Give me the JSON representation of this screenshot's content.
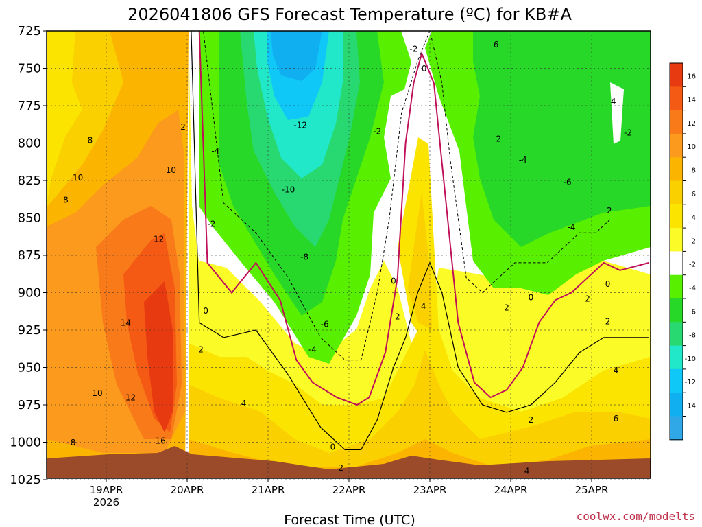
{
  "chart_data": {
    "type": "heatmap",
    "title": "2026041806 GFS Forecast Temperature (ºC) for KB#A",
    "xlabel": "Forecast Time (UTC)",
    "ylabel": "Pressure (hPa)",
    "credit": "coolwx.com/modelts",
    "ylim": [
      1025,
      725
    ],
    "xlim": [
      0.0,
      7.46
    ],
    "y_ticks": [
      "725",
      "750",
      "775",
      "800",
      "825",
      "850",
      "875",
      "900",
      "925",
      "950",
      "975",
      "1000",
      "1025"
    ],
    "x_ticks": [
      {
        "label": "19APR",
        "sub": "2026",
        "day": 0.75
      },
      {
        "label": "20APR",
        "sub": "",
        "day": 1.75
      },
      {
        "label": "21APR",
        "sub": "",
        "day": 2.75
      },
      {
        "label": "22APR",
        "sub": "",
        "day": 3.75
      },
      {
        "label": "23APR",
        "sub": "",
        "day": 4.75
      },
      {
        "label": "24APR",
        "sub": "",
        "day": 5.75
      },
      {
        "label": "25APR",
        "sub": "",
        "day": 6.75
      }
    ],
    "colorbar": {
      "levels": [
        "16",
        "14",
        "12",
        "10",
        "8",
        "6",
        "4",
        "2",
        "-2",
        "-4",
        "-6",
        "-8",
        "-10",
        "-12",
        "-14"
      ],
      "colors": [
        "#e83a10",
        "#f45a14",
        "#f97a18",
        "#fb9a1c",
        "#fbb400",
        "#fbd000",
        "#fbe400",
        "#fbfb28",
        "#ffffff",
        "#58f000",
        "#28d828",
        "#28d870",
        "#20e8c8",
        "#10c8f8",
        "#10b0f0",
        "#30a8e8"
      ]
    },
    "series": [
      {
        "name": "freezing line (0°C)",
        "day": [
          1.9,
          2.0,
          2.3,
          2.6,
          2.9,
          3.1,
          3.3,
          3.6,
          3.85,
          4.0,
          4.2,
          4.35,
          4.45,
          4.55,
          4.65,
          4.8,
          4.95,
          5.1,
          5.3,
          5.5,
          5.7,
          5.9,
          6.1,
          6.3,
          6.5,
          6.7,
          6.9,
          7.1,
          7.46
        ],
        "p": [
          725,
          880,
          900,
          880,
          905,
          945,
          960,
          970,
          975,
          970,
          940,
          890,
          800,
          760,
          740,
          760,
          840,
          920,
          960,
          970,
          965,
          950,
          920,
          905,
          900,
          890,
          880,
          885,
          880
        ]
      },
      {
        "name": "-2°C isotherm",
        "day": [
          1.95,
          2.2,
          2.6,
          3.0,
          3.4,
          3.7,
          3.9,
          4.1,
          4.25,
          4.4,
          4.6,
          4.75,
          4.9,
          5.0,
          5.2,
          5.4,
          5.6,
          5.8,
          6.0,
          6.2,
          6.4,
          6.6,
          6.8,
          7.0,
          7.46
        ],
        "p": [
          725,
          840,
          860,
          890,
          930,
          945,
          945,
          900,
          850,
          780,
          745,
          725,
          760,
          810,
          890,
          900,
          890,
          880,
          880,
          880,
          870,
          860,
          860,
          850,
          850
        ]
      },
      {
        "name": "2°C isotherm",
        "day": [
          1.8,
          1.9,
          2.2,
          2.6,
          3.0,
          3.4,
          3.7,
          3.9,
          4.1,
          4.3,
          4.45,
          4.6,
          4.75,
          4.9,
          5.1,
          5.4,
          5.7,
          6.0,
          6.3,
          6.6,
          6.9,
          7.2,
          7.46
        ],
        "p": [
          725,
          920,
          930,
          925,
          955,
          990,
          1005,
          1005,
          985,
          950,
          930,
          900,
          880,
          900,
          950,
          975,
          980,
          975,
          960,
          940,
          930,
          930,
          930
        ]
      }
    ],
    "contour_labels": [
      {
        "text": "8",
        "day": 0.55,
        "p": 800
      },
      {
        "text": "8",
        "day": 0.25,
        "p": 840
      },
      {
        "text": "10",
        "day": 0.4,
        "p": 825
      },
      {
        "text": "10",
        "day": 1.55,
        "p": 820
      },
      {
        "text": "12",
        "day": 1.4,
        "p": 866
      },
      {
        "text": "14",
        "day": 0.99,
        "p": 922
      },
      {
        "text": "10",
        "day": 0.64,
        "p": 969
      },
      {
        "text": "12",
        "day": 1.05,
        "p": 972
      },
      {
        "text": "16",
        "day": 1.42,
        "p": 1001
      },
      {
        "text": "8",
        "day": 0.34,
        "p": 1002
      },
      {
        "text": "2",
        "day": 1.7,
        "p": 791
      },
      {
        "text": "-4",
        "day": 2.1,
        "p": 807
      },
      {
        "text": "-2",
        "day": 2.05,
        "p": 856
      },
      {
        "text": "0",
        "day": 1.98,
        "p": 914
      },
      {
        "text": "2",
        "day": 1.92,
        "p": 940
      },
      {
        "text": "4",
        "day": 2.45,
        "p": 976
      },
      {
        "text": "6",
        "day": 2.0,
        "p": 1028
      },
      {
        "text": "-12",
        "day": 3.15,
        "p": 790
      },
      {
        "text": "-10",
        "day": 3.0,
        "p": 833
      },
      {
        "text": "-8",
        "day": 3.2,
        "p": 878
      },
      {
        "text": "-6",
        "day": 3.45,
        "p": 923
      },
      {
        "text": "-4",
        "day": 3.3,
        "p": 940
      },
      {
        "text": "2",
        "day": 3.65,
        "p": 1019
      },
      {
        "text": "0",
        "day": 3.55,
        "p": 1005
      },
      {
        "text": "2",
        "day": 3.35,
        "p": 1038
      },
      {
        "text": "-2",
        "day": 4.1,
        "p": 794
      },
      {
        "text": "-2",
        "day": 4.55,
        "p": 739
      },
      {
        "text": "0",
        "day": 4.68,
        "p": 752
      },
      {
        "text": "0",
        "day": 4.3,
        "p": 894
      },
      {
        "text": "4",
        "day": 4.67,
        "p": 911
      },
      {
        "text": "2",
        "day": 4.35,
        "p": 918
      },
      {
        "text": "4",
        "day": 4.28,
        "p": 1048
      },
      {
        "text": "6",
        "day": 4.32,
        "p": 1063
      },
      {
        "text": "-6",
        "day": 5.55,
        "p": 736
      },
      {
        "text": "-8",
        "day": 6.47,
        "p": 716
      },
      {
        "text": "-4",
        "day": 7.0,
        "p": 774
      },
      {
        "text": "-2",
        "day": 7.2,
        "p": 795
      },
      {
        "text": "2",
        "day": 5.6,
        "p": 799
      },
      {
        "text": "-4",
        "day": 5.9,
        "p": 813
      },
      {
        "text": "-6",
        "day": 6.45,
        "p": 828
      },
      {
        "text": "-2",
        "day": 6.95,
        "p": 847
      },
      {
        "text": "-4",
        "day": 6.5,
        "p": 858
      },
      {
        "text": "0",
        "day": 6.95,
        "p": 896
      },
      {
        "text": "2",
        "day": 6.7,
        "p": 906
      },
      {
        "text": "0",
        "day": 6.0,
        "p": 905
      },
      {
        "text": "2",
        "day": 5.7,
        "p": 912
      },
      {
        "text": "2",
        "day": 6.95,
        "p": 921
      },
      {
        "text": "4",
        "day": 7.05,
        "p": 954
      },
      {
        "text": "6",
        "day": 7.05,
        "p": 986
      },
      {
        "text": "2",
        "day": 6.0,
        "p": 987
      },
      {
        "text": "4",
        "day": 5.95,
        "p": 1021
      },
      {
        "text": "6",
        "day": 5.5,
        "p": 1059
      }
    ]
  }
}
